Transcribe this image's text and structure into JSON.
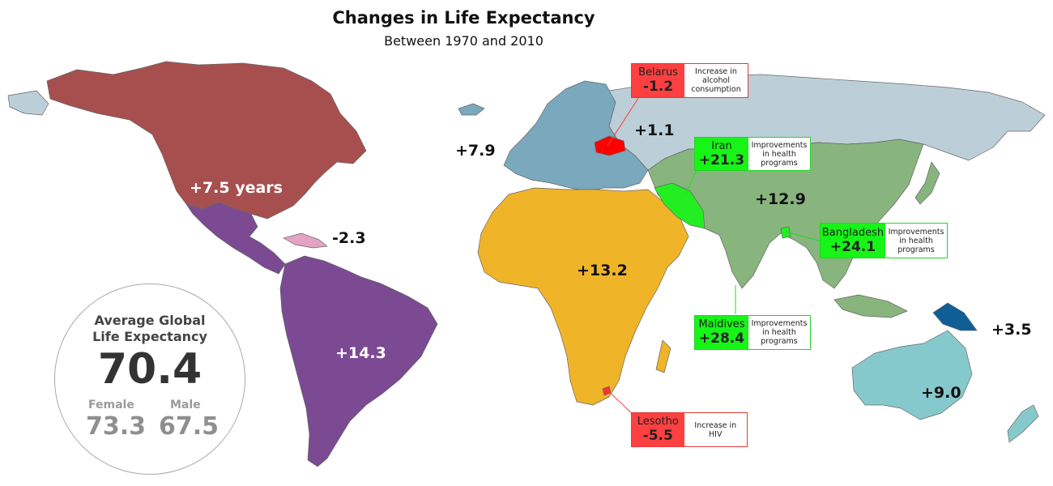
{
  "title": "Changes in Life Expectancy",
  "subtitle": "Between 1970 and 2010",
  "colors": {
    "north_america": "#a74f4f",
    "mexico_central_south_america": "#7b4a93",
    "caribbean": "#e4a3c2",
    "europe": "#7aa8bd",
    "russia": "#bccfd8",
    "africa_middle_east": "#f0b429",
    "asia": "#88b47e",
    "oceania": "#86c9cc",
    "papua_new_guinea": "#0f5f96",
    "belarus": "#ff0000",
    "iran": "#22ee22",
    "callout_red": "#ff4040",
    "callout_green": "#17f417"
  },
  "regions": [
    {
      "id": "north-america",
      "value": "+7.5 years"
    },
    {
      "id": "caribbean",
      "value": "-2.3"
    },
    {
      "id": "latin-america",
      "value": "+14.3"
    },
    {
      "id": "europe",
      "value": "+7.9"
    },
    {
      "id": "russia",
      "value": "+1.1"
    },
    {
      "id": "asia",
      "value": "+12.9"
    },
    {
      "id": "africa",
      "value": "+13.2"
    },
    {
      "id": "papua-new-guinea",
      "value": "+3.5"
    },
    {
      "id": "australia",
      "value": "+9.0"
    }
  ],
  "callouts": [
    {
      "id": "belarus",
      "country": "Belarus",
      "value": "-1.2",
      "note": "Increase in alcohol consumption"
    },
    {
      "id": "iran",
      "country": "Iran",
      "value": "+21.3",
      "note": "Improvements in health programs"
    },
    {
      "id": "bangladesh",
      "country": "Bangladesh",
      "value": "+24.1",
      "note": "Improvements in health programs"
    },
    {
      "id": "maldives",
      "country": "Maldives",
      "value": "+28.4",
      "note": "Improvements in health programs"
    },
    {
      "id": "lesotho",
      "country": "Lesotho",
      "value": "-5.5",
      "note": "Increase in HIV"
    }
  ],
  "global": {
    "title_line1": "Average Global",
    "title_line2": "Life Expectancy",
    "value": "70.4",
    "female_label": "Female",
    "female_value": "73.3",
    "male_label": "Male",
    "male_value": "67.5"
  }
}
